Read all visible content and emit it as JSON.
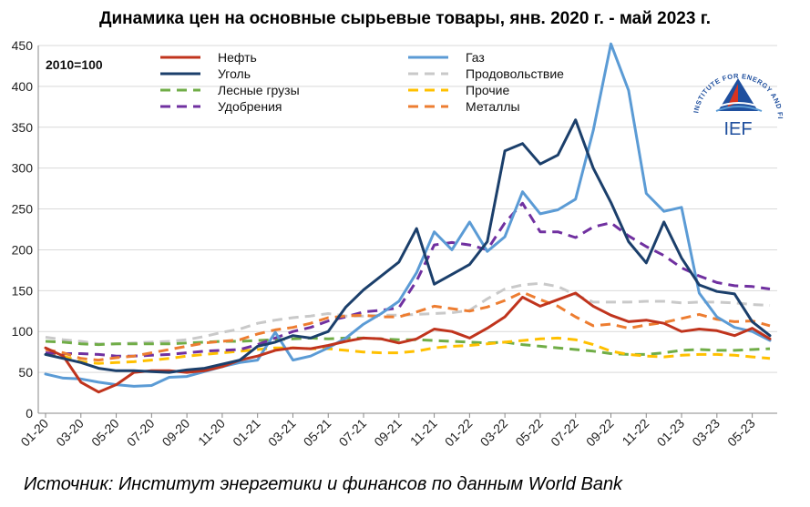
{
  "title": "Динамика цен на основные сырьевые товары, янв. 2020 г. - май 2023 г.",
  "source": "Источник: Институт энергетики и финансов по данным World Bank",
  "base_label": "2010=100",
  "logo": {
    "arc_text": "INSTITUTE FOR ENERGY AND FINANCE",
    "abbr": "IEF",
    "color": "#1f4f9e",
    "accent": "#d9331f"
  },
  "chart_data": {
    "type": "line",
    "title": "Динамика цен на основные сырьевые товары, янв. 2020 г. - май 2023 г.",
    "ylim": [
      0,
      450
    ],
    "yticks": [
      0,
      50,
      100,
      150,
      200,
      250,
      300,
      350,
      400,
      450
    ],
    "xtick_labels": [
      "01-20",
      "03-20",
      "05-20",
      "07-20",
      "09-20",
      "11-20",
      "01-21",
      "03-21",
      "05-21",
      "07-21",
      "09-21",
      "11-21",
      "01-22",
      "03-22",
      "05-22",
      "07-22",
      "09-22",
      "11-22",
      "01-23",
      "03-23",
      "05-23"
    ],
    "grid": "horizontal",
    "legend": "top-left, two columns",
    "series": [
      {
        "name": "Нефть",
        "color": "#c0341d",
        "dash": "solid",
        "width": 3,
        "values": [
          80,
          70,
          38,
          26,
          35,
          50,
          52,
          52,
          50,
          52,
          57,
          65,
          70,
          77,
          80,
          79,
          83,
          88,
          92,
          91,
          86,
          91,
          103,
          100,
          92,
          104,
          118,
          142,
          131,
          139,
          147,
          131,
          120,
          112,
          114,
          110,
          100,
          103,
          101,
          95,
          104,
          91
        ]
      },
      {
        "name": "Газ",
        "color": "#5b9bd5",
        "dash": "solid",
        "width": 3,
        "values": [
          48,
          43,
          42,
          38,
          35,
          33,
          34,
          44,
          45,
          51,
          57,
          62,
          65,
          99,
          65,
          70,
          80,
          92,
          109,
          122,
          137,
          172,
          222,
          200,
          234,
          198,
          216,
          271,
          244,
          249,
          262,
          346,
          452,
          395,
          269,
          247,
          252,
          147,
          118,
          105,
          100,
          89
        ]
      },
      {
        "name": "Уголь",
        "color": "#1b3f6b",
        "dash": "solid",
        "width": 3,
        "values": [
          72,
          67,
          62,
          55,
          52,
          52,
          51,
          50,
          53,
          55,
          60,
          65,
          82,
          87,
          95,
          92,
          100,
          130,
          151,
          168,
          185,
          226,
          158,
          170,
          182,
          210,
          321,
          330,
          305,
          316,
          359,
          300,
          258,
          210,
          184,
          234,
          190,
          157,
          149,
          146,
          112,
          95
        ]
      },
      {
        "name": "Продовольствие",
        "color": "#c9c9c9",
        "dash": "dashed",
        "width": 3,
        "values": [
          93,
          90,
          88,
          85,
          85,
          86,
          87,
          88,
          90,
          94,
          99,
          103,
          110,
          114,
          117,
          119,
          122,
          119,
          119,
          120,
          120,
          121,
          122,
          123,
          126,
          140,
          152,
          157,
          159,
          155,
          145,
          136,
          136,
          136,
          137,
          137,
          135,
          136,
          136,
          135,
          133,
          132
        ]
      },
      {
        "name": "Лесные грузы",
        "color": "#70ad47",
        "dash": "dashed",
        "width": 3,
        "values": [
          88,
          87,
          85,
          84,
          85,
          85,
          85,
          85,
          86,
          87,
          88,
          88,
          89,
          90,
          91,
          92,
          91,
          92,
          92,
          91,
          90,
          90,
          89,
          88,
          87,
          86,
          87,
          84,
          82,
          80,
          78,
          76,
          73,
          72,
          72,
          74,
          77,
          78,
          77,
          77,
          78,
          79
        ]
      },
      {
        "name": "Прочие",
        "color": "#ffc000",
        "dash": "dashed",
        "width": 3,
        "values": [
          72,
          70,
          63,
          61,
          62,
          63,
          65,
          67,
          70,
          72,
          74,
          76,
          78,
          80,
          80,
          79,
          79,
          77,
          75,
          74,
          74,
          76,
          80,
          82,
          83,
          85,
          87,
          89,
          91,
          92,
          90,
          84,
          76,
          72,
          70,
          69,
          71,
          72,
          72,
          71,
          69,
          67
        ]
      },
      {
        "name": "Удобрения",
        "color": "#7030a0",
        "dash": "dashed",
        "width": 3,
        "values": [
          74,
          73,
          73,
          72,
          70,
          70,
          71,
          72,
          74,
          76,
          77,
          78,
          84,
          92,
          100,
          105,
          113,
          118,
          124,
          126,
          129,
          162,
          206,
          209,
          206,
          200,
          233,
          257,
          222,
          222,
          215,
          228,
          233,
          217,
          204,
          193,
          178,
          168,
          160,
          156,
          155,
          152
        ]
      },
      {
        "name": "Металлы",
        "color": "#ed7d31",
        "dash": "dashed",
        "width": 3,
        "values": [
          78,
          74,
          67,
          65,
          68,
          70,
          74,
          78,
          82,
          86,
          88,
          90,
          97,
          102,
          105,
          110,
          117,
          119,
          120,
          118,
          118,
          124,
          131,
          128,
          125,
          130,
          138,
          148,
          139,
          131,
          118,
          107,
          109,
          104,
          108,
          111,
          116,
          121,
          115,
          112,
          113,
          107
        ]
      }
    ]
  }
}
